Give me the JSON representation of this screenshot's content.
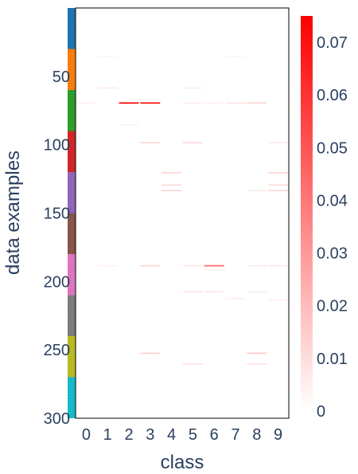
{
  "chart_data": {
    "type": "heatmap",
    "title": "",
    "xlabel": "class",
    "ylabel": "data examples",
    "x_categories": [
      "0",
      "1",
      "2",
      "3",
      "4",
      "5",
      "6",
      "7",
      "8",
      "9"
    ],
    "y_range": [
      0,
      300
    ],
    "y_ticks": [
      "50",
      "100",
      "150",
      "200",
      "250",
      "300"
    ],
    "colorscale": [
      "#ffffff",
      "#ff0000"
    ],
    "z_range": [
      0,
      0.075
    ],
    "colorbar_ticks": [
      "0",
      "0.01",
      "0.02",
      "0.03",
      "0.04",
      "0.05",
      "0.06",
      "0.07"
    ],
    "class_strip": {
      "rows_per_class": 30,
      "colors": [
        "#1f77b4",
        "#ff7f0e",
        "#2ca02c",
        "#d62728",
        "#9467bd",
        "#8c564b",
        "#e377c2",
        "#7f7f7f",
        "#bcbd22",
        "#17becf"
      ]
    },
    "cells": [
      {
        "row": 35,
        "class": 1,
        "value": 0.003
      },
      {
        "row": 35,
        "class": 7,
        "value": 0.003
      },
      {
        "row": 58,
        "class": 1,
        "value": 0.006
      },
      {
        "row": 58,
        "class": 5,
        "value": 0.005
      },
      {
        "row": 69,
        "class": 0,
        "value": 0.004
      },
      {
        "row": 69,
        "class": 2,
        "value": 0.075
      },
      {
        "row": 69,
        "class": 3,
        "value": 0.072
      },
      {
        "row": 69,
        "class": 5,
        "value": 0.006
      },
      {
        "row": 69,
        "class": 6,
        "value": 0.004
      },
      {
        "row": 69,
        "class": 7,
        "value": 0.008
      },
      {
        "row": 69,
        "class": 8,
        "value": 0.012
      },
      {
        "row": 85,
        "class": 2,
        "value": 0.004
      },
      {
        "row": 98,
        "class": 3,
        "value": 0.012
      },
      {
        "row": 98,
        "class": 5,
        "value": 0.011
      },
      {
        "row": 98,
        "class": 9,
        "value": 0.006
      },
      {
        "row": 120,
        "class": 4,
        "value": 0.013
      },
      {
        "row": 120,
        "class": 9,
        "value": 0.012
      },
      {
        "row": 129,
        "class": 4,
        "value": 0.011
      },
      {
        "row": 129,
        "class": 9,
        "value": 0.01
      },
      {
        "row": 133,
        "class": 4,
        "value": 0.012
      },
      {
        "row": 133,
        "class": 8,
        "value": 0.005
      },
      {
        "row": 133,
        "class": 9,
        "value": 0.012
      },
      {
        "row": 188,
        "class": 1,
        "value": 0.004
      },
      {
        "row": 188,
        "class": 3,
        "value": 0.012
      },
      {
        "row": 188,
        "class": 5,
        "value": 0.008
      },
      {
        "row": 188,
        "class": 6,
        "value": 0.045
      },
      {
        "row": 188,
        "class": 8,
        "value": 0.005
      },
      {
        "row": 188,
        "class": 9,
        "value": 0.008
      },
      {
        "row": 191,
        "class": 6,
        "value": 0.004
      },
      {
        "row": 207,
        "class": 5,
        "value": 0.008
      },
      {
        "row": 207,
        "class": 6,
        "value": 0.008
      },
      {
        "row": 207,
        "class": 8,
        "value": 0.005
      },
      {
        "row": 212,
        "class": 7,
        "value": 0.006
      },
      {
        "row": 213,
        "class": 9,
        "value": 0.004
      },
      {
        "row": 252,
        "class": 3,
        "value": 0.014
      },
      {
        "row": 252,
        "class": 8,
        "value": 0.015
      },
      {
        "row": 260,
        "class": 5,
        "value": 0.008
      },
      {
        "row": 260,
        "class": 8,
        "value": 0.008
      }
    ]
  }
}
